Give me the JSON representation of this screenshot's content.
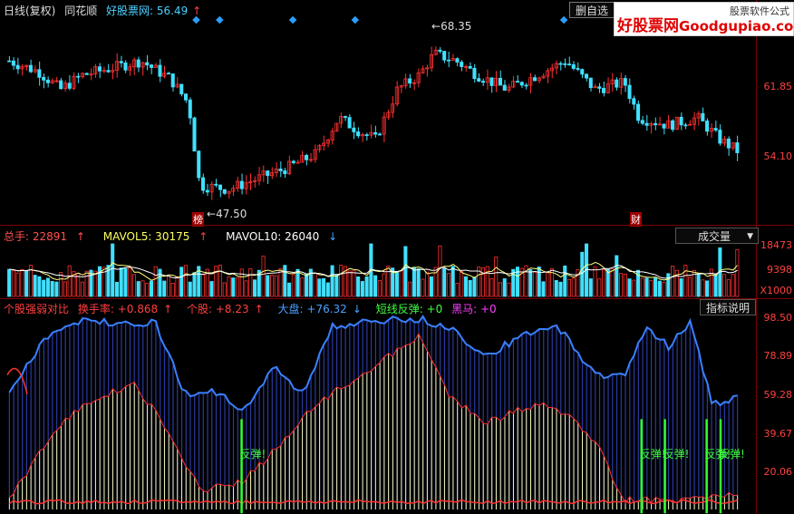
{
  "header": {
    "title": "日线(复权)",
    "stock": "同花顺",
    "source": "好股票网: 56.49",
    "up_arrow": "↑",
    "right_menu": "删自选"
  },
  "watermark": {
    "brand": "好股票网",
    "domain": "Goodgupiao.com",
    "sub": "股票软件公式"
  },
  "price_panel": {
    "high_label": "68.35",
    "low_label": "47.50",
    "marker_left": "榜",
    "marker_right": "财",
    "ticks": [
      "61.85",
      "54.10"
    ]
  },
  "volume_panel": {
    "indicators": [
      {
        "label": "总手: 22891",
        "arrow": "↑",
        "color": "#ff5050"
      },
      {
        "label": "MAVOL5: 30175",
        "arrow": "↑",
        "color": "#ffff60"
      },
      {
        "label": "MAVOL10: 26040",
        "arrow": "↓",
        "color": "#ffffff"
      }
    ],
    "dropdown": "成交量",
    "ticks": [
      "18473",
      "9398",
      "X1000"
    ]
  },
  "indicator_panel": {
    "items": [
      {
        "label": "个股强弱对比",
        "color": "#ff4040"
      },
      {
        "label": "换手率: +0.868",
        "arrow": "↑",
        "color": "#ff4040"
      },
      {
        "label": "个股: +8.23",
        "arrow": "↑",
        "color": "#ff4040"
      },
      {
        "label": "大盘: +76.32",
        "arrow": "↓",
        "color": "#4aa0ff"
      },
      {
        "label": "短线反弹: +0",
        "color": "#40ff40"
      },
      {
        "label": "黑马: +0",
        "color": "#ff40ff"
      }
    ],
    "button": "指标说明",
    "ticks": [
      "98.50",
      "78.89",
      "59.28",
      "39.67",
      "20.06"
    ],
    "signal_text": "反弹!"
  },
  "chart_data": {
    "type": "candlestick",
    "price_range": [
      44,
      72
    ],
    "signals_at": [
      0.32,
      0.866,
      0.898,
      0.955,
      0.974
    ]
  }
}
